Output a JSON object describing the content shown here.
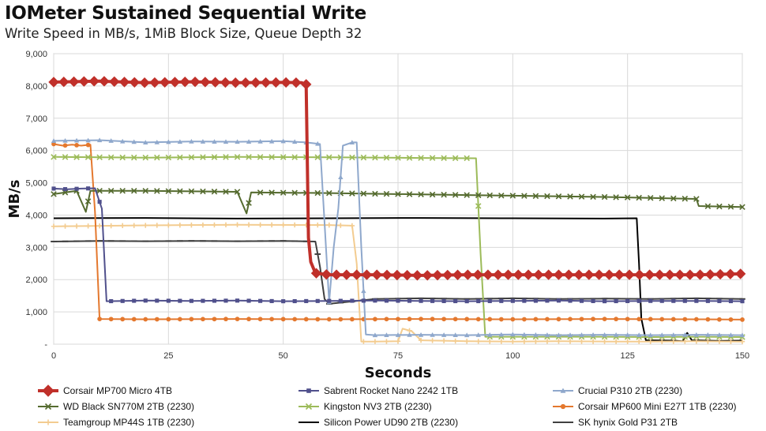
{
  "header": {
    "title": "IOMeter Sustained Sequential Write",
    "subtitle": "Write Speed in MB/s, 1MiB Block Size, Queue Depth 32"
  },
  "chart_data": {
    "type": "line",
    "title": "IOMeter Sustained Sequential Write",
    "subtitle": "Write Speed in MB/s, 1MiB Block Size, Queue Depth 32",
    "xlabel": "Seconds",
    "ylabel": "MB/s",
    "xlim": [
      0,
      150
    ],
    "ylim": [
      0,
      9000
    ],
    "xticks": [
      0,
      25,
      50,
      75,
      100,
      125,
      150
    ],
    "yticks": [
      0,
      1000,
      2000,
      3000,
      4000,
      5000,
      6000,
      7000,
      8000,
      9000
    ],
    "ytick_labels": [
      "-",
      "1,000",
      "2,000",
      "3,000",
      "4,000",
      "5,000",
      "6,000",
      "7,000",
      "8,000",
      "9,000"
    ],
    "grid": true,
    "legend_position": "bottom",
    "series": [
      {
        "name": "Corsair MP700 Micro 4TB",
        "color": "#c0302a",
        "marker": "diamond",
        "width": 4,
        "points": [
          [
            0,
            8120
          ],
          [
            10,
            8150
          ],
          [
            20,
            8100
          ],
          [
            30,
            8130
          ],
          [
            40,
            8100
          ],
          [
            50,
            8110
          ],
          [
            54,
            8100
          ],
          [
            55,
            8050
          ],
          [
            55.5,
            3300
          ],
          [
            56,
            2550
          ],
          [
            57,
            2200
          ],
          [
            60,
            2150
          ],
          [
            70,
            2150
          ],
          [
            80,
            2130
          ],
          [
            90,
            2150
          ],
          [
            100,
            2150
          ],
          [
            110,
            2150
          ],
          [
            120,
            2150
          ],
          [
            130,
            2150
          ],
          [
            140,
            2150
          ],
          [
            150,
            2180
          ]
        ]
      },
      {
        "name": "Sabrent Rocket Nano 2242 1TB",
        "color": "#50508c",
        "marker": "square",
        "width": 2,
        "points": [
          [
            0,
            4820
          ],
          [
            3,
            4800
          ],
          [
            6,
            4820
          ],
          [
            9,
            4830
          ],
          [
            10.5,
            4200
          ],
          [
            11.5,
            1330
          ],
          [
            20,
            1350
          ],
          [
            30,
            1340
          ],
          [
            40,
            1350
          ],
          [
            50,
            1330
          ],
          [
            60,
            1340
          ],
          [
            70,
            1350
          ],
          [
            80,
            1340
          ],
          [
            90,
            1330
          ],
          [
            100,
            1340
          ],
          [
            110,
            1350
          ],
          [
            120,
            1330
          ],
          [
            130,
            1340
          ],
          [
            140,
            1340
          ],
          [
            150,
            1330
          ]
        ]
      },
      {
        "name": "Crucial P310 2TB (2230)",
        "color": "#8fa8cc",
        "marker": "triangle",
        "width": 2,
        "points": [
          [
            0,
            6300
          ],
          [
            10,
            6320
          ],
          [
            20,
            6250
          ],
          [
            30,
            6280
          ],
          [
            40,
            6270
          ],
          [
            50,
            6290
          ],
          [
            55,
            6250
          ],
          [
            57,
            6220
          ],
          [
            58,
            6200
          ],
          [
            60,
            1300
          ],
          [
            61,
            3000
          ],
          [
            62,
            4200
          ],
          [
            63,
            6150
          ],
          [
            65,
            6250
          ],
          [
            66,
            6250
          ],
          [
            67,
            3000
          ],
          [
            68,
            300
          ],
          [
            70,
            280
          ],
          [
            80,
            290
          ],
          [
            90,
            280
          ],
          [
            100,
            300
          ],
          [
            110,
            280
          ],
          [
            120,
            290
          ],
          [
            130,
            280
          ],
          [
            140,
            290
          ],
          [
            150,
            280
          ]
        ]
      },
      {
        "name": "WD Black SN770M 2TB (2230)",
        "color": "#556b2f",
        "marker": "x",
        "width": 2,
        "points": [
          [
            0,
            4650
          ],
          [
            5,
            4750
          ],
          [
            7,
            4100
          ],
          [
            8,
            4750
          ],
          [
            20,
            4750
          ],
          [
            40,
            4720
          ],
          [
            42,
            4050
          ],
          [
            43,
            4700
          ],
          [
            60,
            4680
          ],
          [
            80,
            4640
          ],
          [
            100,
            4600
          ],
          [
            120,
            4560
          ],
          [
            130,
            4530
          ],
          [
            140,
            4500
          ],
          [
            140.5,
            4280
          ],
          [
            150,
            4250
          ]
        ]
      },
      {
        "name": "Kingston NV3 2TB (2230)",
        "color": "#9cbb59",
        "marker": "x",
        "width": 2,
        "points": [
          [
            0,
            5800
          ],
          [
            20,
            5780
          ],
          [
            40,
            5800
          ],
          [
            60,
            5790
          ],
          [
            80,
            5770
          ],
          [
            92,
            5760
          ],
          [
            93,
            2800
          ],
          [
            94,
            230
          ],
          [
            100,
            230
          ],
          [
            110,
            230
          ],
          [
            120,
            230
          ],
          [
            130,
            220
          ],
          [
            140,
            230
          ],
          [
            150,
            220
          ]
        ]
      },
      {
        "name": "Corsair MP600 Mini E27T 1TB (2230)",
        "color": "#e4782e",
        "marker": "circle",
        "width": 2,
        "points": [
          [
            0,
            6200
          ],
          [
            2,
            6150
          ],
          [
            4,
            6180
          ],
          [
            6,
            6150
          ],
          [
            8,
            6180
          ],
          [
            9,
            4100
          ],
          [
            10,
            780
          ],
          [
            20,
            770
          ],
          [
            40,
            780
          ],
          [
            60,
            770
          ],
          [
            80,
            780
          ],
          [
            100,
            770
          ],
          [
            120,
            780
          ],
          [
            140,
            770
          ],
          [
            150,
            760
          ]
        ]
      },
      {
        "name": "Teamgroup MP44S 1TB (2230)",
        "color": "#f3cc90",
        "marker": "plus",
        "width": 2,
        "points": [
          [
            0,
            3650
          ],
          [
            20,
            3680
          ],
          [
            40,
            3700
          ],
          [
            60,
            3690
          ],
          [
            65,
            3670
          ],
          [
            66,
            2500
          ],
          [
            67,
            80
          ],
          [
            70,
            80
          ],
          [
            75,
            90
          ],
          [
            76,
            480
          ],
          [
            78,
            400
          ],
          [
            80,
            120
          ],
          [
            90,
            90
          ],
          [
            100,
            80
          ],
          [
            110,
            90
          ],
          [
            120,
            80
          ],
          [
            130,
            80
          ],
          [
            140,
            90
          ],
          [
            150,
            80
          ]
        ]
      },
      {
        "name": "Silicon Power UD90 2TB (2230)",
        "color": "#000000",
        "marker": "none",
        "width": 2,
        "points": [
          [
            0,
            3900
          ],
          [
            20,
            3910
          ],
          [
            40,
            3890
          ],
          [
            60,
            3900
          ],
          [
            80,
            3910
          ],
          [
            100,
            3900
          ],
          [
            120,
            3890
          ],
          [
            127,
            3900
          ],
          [
            127.5,
            2500
          ],
          [
            128,
            800
          ],
          [
            129,
            120
          ],
          [
            135,
            110
          ],
          [
            137,
            90
          ],
          [
            138,
            350
          ],
          [
            139,
            120
          ],
          [
            145,
            100
          ],
          [
            150,
            110
          ]
        ]
      },
      {
        "name": "SK hynix Gold P31 2TB",
        "color": "#404040",
        "marker": "hbar",
        "width": 2,
        "points": [
          [
            0,
            3180
          ],
          [
            10,
            3200
          ],
          [
            20,
            3190
          ],
          [
            30,
            3200
          ],
          [
            40,
            3190
          ],
          [
            50,
            3200
          ],
          [
            57,
            3180
          ],
          [
            58,
            2400
          ],
          [
            59,
            1400
          ],
          [
            60,
            1250
          ],
          [
            70,
            1400
          ],
          [
            80,
            1420
          ],
          [
            90,
            1400
          ],
          [
            100,
            1420
          ],
          [
            110,
            1400
          ],
          [
            120,
            1410
          ],
          [
            130,
            1400
          ],
          [
            140,
            1420
          ],
          [
            150,
            1400
          ]
        ]
      }
    ]
  }
}
